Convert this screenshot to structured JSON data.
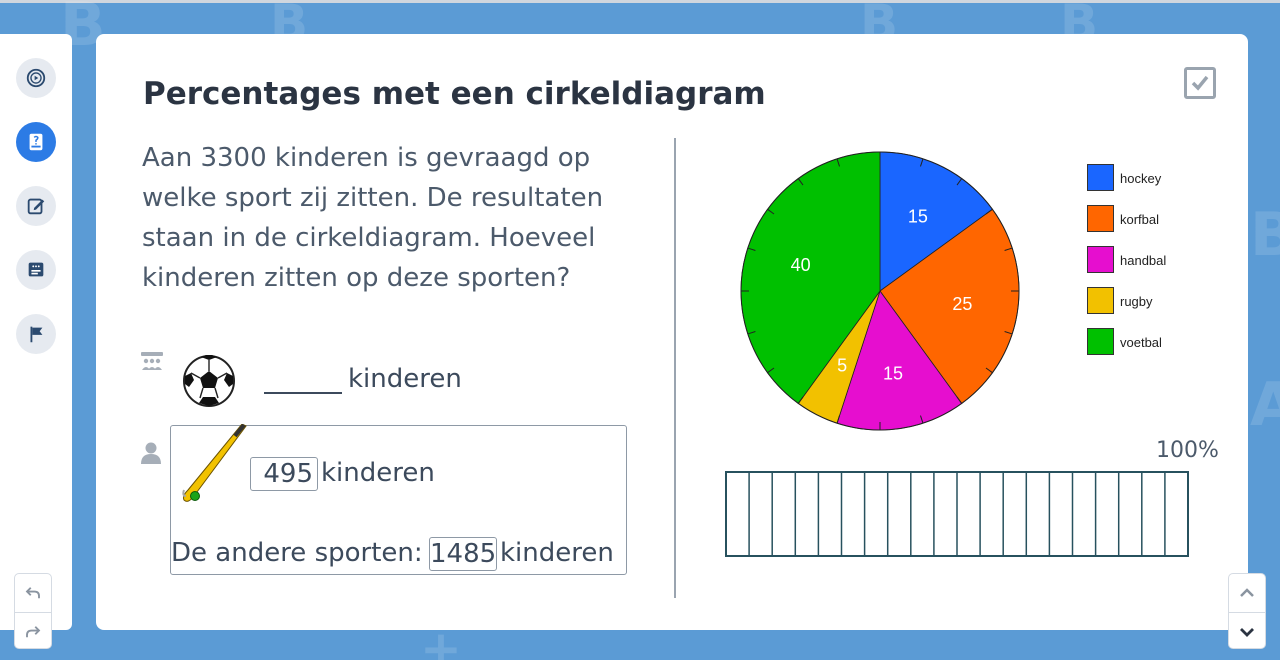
{
  "lesson": {
    "title": "Percentages met een cirkeldiagram",
    "question": "Aan 3300 kinderen is gevraagd op welke sport zij zitten. De resultaten staan in de cirkeldiagram. Hoeveel kinderen zitten op deze sporten?"
  },
  "toolbar": {
    "items": [
      {
        "name": "play-icon",
        "active": false
      },
      {
        "name": "book-icon",
        "active": true
      },
      {
        "name": "edit-icon",
        "active": false
      },
      {
        "name": "chat-icon",
        "active": false
      },
      {
        "name": "flag-icon",
        "active": false
      }
    ],
    "undo": "undo-icon",
    "redo": "redo-icon"
  },
  "answers": {
    "voetbal": {
      "value": "",
      "unit": "kinderen"
    },
    "hockey": {
      "value": "495",
      "unit": "kinderen"
    },
    "others": {
      "label": "De andere sporten:",
      "value": "1485",
      "unit": "kinderen"
    }
  },
  "percent_bar": {
    "label": "100%",
    "segments": 20
  },
  "chart_data": {
    "type": "pie",
    "slices": [
      {
        "label": "hockey",
        "value": 15,
        "color": "#1a66ff"
      },
      {
        "label": "korfbal",
        "value": 25,
        "color": "#ff6600"
      },
      {
        "label": "handbal",
        "value": 15,
        "color": "#e60ecf"
      },
      {
        "label": "rugby",
        "value": 5,
        "color": "#f2c100"
      },
      {
        "label": "voetbal",
        "value": 40,
        "color": "#00c000"
      }
    ],
    "legend_placement": "right"
  },
  "colors": {
    "background": "#5b9bd5",
    "accent": "#2c7be5",
    "bar_stroke": "#27515e"
  }
}
